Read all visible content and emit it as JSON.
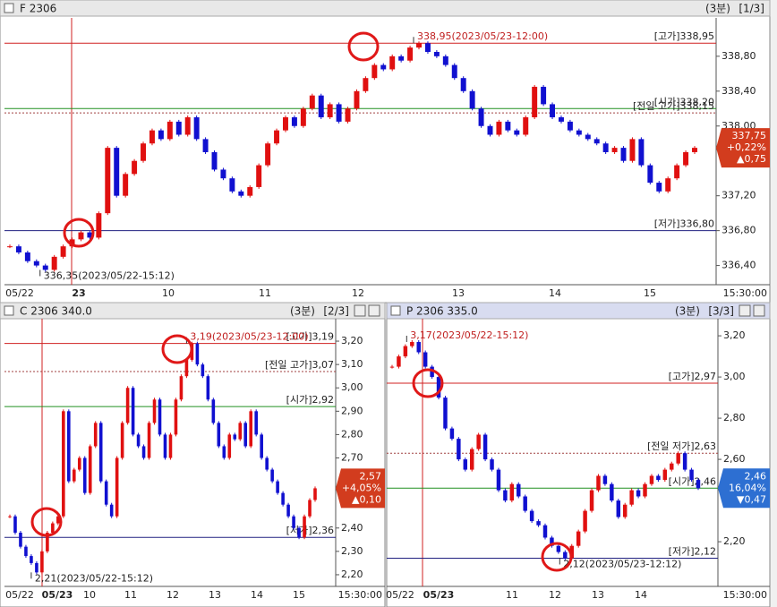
{
  "chart_data": [
    {
      "type": "candlestick",
      "title": "F 2306",
      "period": "(3분)",
      "page": "[1/3]",
      "x_labels": [
        "05/22",
        "23",
        "10",
        "11",
        "12",
        "13",
        "14",
        "15"
      ],
      "time_label": "15:30:00",
      "ylim": [
        336.18,
        339.24
      ],
      "yticks": [
        {
          "value": 338.8,
          "label": "338,80"
        },
        {
          "value": 338.4,
          "label": "338,40"
        },
        {
          "value": 338.0,
          "label": "338,00"
        },
        {
          "value": 337.2,
          "label": "337,20"
        },
        {
          "value": 336.8,
          "label": "336,80"
        },
        {
          "value": 336.4,
          "label": "336,40"
        }
      ],
      "up_color": "#e01010",
      "down_color": "#1010d0",
      "values": [
        336.62,
        336.55,
        336.45,
        336.4,
        336.35,
        336.5,
        336.62,
        336.7,
        336.78,
        336.72,
        337.0,
        337.75,
        337.2,
        337.45,
        337.6,
        337.8,
        337.95,
        337.85,
        338.05,
        337.9,
        338.1,
        337.85,
        337.7,
        337.5,
        337.4,
        337.25,
        337.2,
        337.3,
        337.55,
        337.8,
        337.95,
        338.1,
        338.0,
        338.2,
        338.35,
        338.1,
        338.25,
        338.05,
        338.2,
        338.4,
        338.55,
        338.7,
        338.65,
        338.8,
        338.75,
        338.9,
        338.95,
        338.85,
        338.8,
        338.7,
        338.55,
        338.4,
        338.2,
        338.0,
        337.9,
        338.05,
        337.95,
        337.9,
        338.1,
        338.45,
        338.25,
        338.1,
        338.05,
        337.95,
        337.9,
        337.85,
        337.8,
        337.7,
        337.75,
        337.6,
        337.85,
        337.55,
        337.35,
        337.25,
        337.4,
        337.55,
        337.7,
        337.75
      ],
      "ref_lines": [
        {
          "label": "[고가]338,95",
          "value": 338.95,
          "color": "#d02020",
          "dashed": false
        },
        {
          "label": "[시가]338,20",
          "value": 338.2,
          "color": "#209020",
          "dashed": false
        },
        {
          "label": "[전일 고가]338,15",
          "value": 338.15,
          "color": "#a04040",
          "dashed": true
        },
        {
          "label": "[저가]336,80",
          "value": 336.8,
          "color": "#202080",
          "dashed": false
        }
      ],
      "annotations": [
        {
          "value": 338.95,
          "label": "338,95(2023/05/23-12:00)"
        },
        {
          "value": 336.35,
          "label": "336,35(2023/05/22-15:12)"
        }
      ],
      "price_box": {
        "price": {
          "value": 337.75,
          "label": "337,75"
        },
        "change_pct": {
          "value": 0.22,
          "label": "+0,22%"
        },
        "change": {
          "value": 0.75,
          "label": "▲0,75"
        },
        "color": "#d23c1e"
      }
    },
    {
      "type": "candlestick",
      "title": "C 2306 340.0",
      "period": "(3분)",
      "page": "[2/3]",
      "x_labels": [
        "05/22",
        "05/23",
        "10",
        "11",
        "12",
        "13",
        "14",
        "15"
      ],
      "time_label": "15:30:00",
      "ylim": [
        2.15,
        3.296
      ],
      "yticks": [
        {
          "value": 3.2,
          "label": "3,20"
        },
        {
          "value": 3.1,
          "label": "3,10"
        },
        {
          "value": 3.0,
          "label": "3,00"
        },
        {
          "value": 2.9,
          "label": "2,90"
        },
        {
          "value": 2.8,
          "label": "2,80"
        },
        {
          "value": 2.7,
          "label": "2,70"
        },
        {
          "value": 2.4,
          "label": "2,40"
        },
        {
          "value": 2.3,
          "label": "2,30"
        },
        {
          "value": 2.2,
          "label": "2,20"
        }
      ],
      "up_color": "#e01010",
      "down_color": "#1010d0",
      "values": [
        2.45,
        2.38,
        2.32,
        2.28,
        2.25,
        2.21,
        2.3,
        2.38,
        2.42,
        2.45,
        2.9,
        2.6,
        2.65,
        2.7,
        2.55,
        2.75,
        2.85,
        2.6,
        2.5,
        2.45,
        2.7,
        2.85,
        3.0,
        2.8,
        2.75,
        2.7,
        2.85,
        2.95,
        2.8,
        2.7,
        2.8,
        2.95,
        3.05,
        3.12,
        3.19,
        3.1,
        3.05,
        2.95,
        2.85,
        2.75,
        2.7,
        2.8,
        2.78,
        2.85,
        2.75,
        2.9,
        2.8,
        2.7,
        2.65,
        2.6,
        2.55,
        2.5,
        2.45,
        2.4,
        2.36,
        2.45,
        2.52,
        2.57
      ],
      "ref_lines": [
        {
          "label": "[고가]3,19",
          "value": 3.19,
          "color": "#d02020",
          "dashed": false
        },
        {
          "label": "[전일 고가]3,07",
          "value": 3.07,
          "color": "#a04040",
          "dashed": true
        },
        {
          "label": "[시가]2,92",
          "value": 2.92,
          "color": "#209020",
          "dashed": false
        },
        {
          "label": "[저가]2,36",
          "value": 2.36,
          "color": "#202080",
          "dashed": false
        }
      ],
      "annotations": [
        {
          "value": 3.19,
          "label": "3,19(2023/05/23-12:00)"
        },
        {
          "value": 2.21,
          "label": "2,21(2023/05/22-15:12)"
        }
      ],
      "price_box": {
        "price": {
          "value": 2.57,
          "label": "2,57"
        },
        "change_pct": {
          "value": 4.05,
          "label": "+4,05%"
        },
        "change": {
          "value": 0.1,
          "label": "▲0,10"
        },
        "color": "#d23c1e"
      }
    },
    {
      "type": "candlestick",
      "title": "P 2306 335.0",
      "period": "(3분)",
      "page": "[3/3]",
      "x_labels": [
        "05/22",
        "05/23",
        "11",
        "12",
        "13",
        "14"
      ],
      "time_label": "15:30:00",
      "ylim": [
        1.983,
        3.283
      ],
      "yticks": [
        {
          "value": 3.2,
          "label": "3,20"
        },
        {
          "value": 3.0,
          "label": "3,00"
        },
        {
          "value": 2.8,
          "label": "2,80"
        },
        {
          "value": 2.6,
          "label": "2,60"
        },
        {
          "value": 2.2,
          "label": "2,20"
        }
      ],
      "up_color": "#e01010",
      "down_color": "#1010d0",
      "values": [
        3.05,
        3.1,
        3.15,
        3.17,
        3.12,
        3.05,
        3.0,
        2.9,
        2.75,
        2.7,
        2.6,
        2.55,
        2.65,
        2.72,
        2.6,
        2.55,
        2.45,
        2.4,
        2.48,
        2.42,
        2.35,
        2.3,
        2.28,
        2.22,
        2.18,
        2.15,
        2.12,
        2.18,
        2.25,
        2.35,
        2.45,
        2.52,
        2.48,
        2.4,
        2.32,
        2.38,
        2.45,
        2.42,
        2.48,
        2.52,
        2.5,
        2.55,
        2.58,
        2.63,
        2.55,
        2.5,
        2.46
      ],
      "ref_lines": [
        {
          "label": "[고가]2,97",
          "value": 2.97,
          "color": "#d02020",
          "dashed": false
        },
        {
          "label": "[전일 저가]2,63",
          "value": 2.63,
          "color": "#a04040",
          "dashed": true
        },
        {
          "label": "[시가]2,46",
          "value": 2.46,
          "color": "#209020",
          "dashed": false
        },
        {
          "label": "[저가]2,12",
          "value": 2.12,
          "color": "#202080",
          "dashed": false
        }
      ],
      "annotations": [
        {
          "value": 3.17,
          "label": "3,17(2023/05/22-15:12)"
        },
        {
          "value": 2.12,
          "label": "2,12(2023/05/23-12:12)"
        }
      ],
      "price_box": {
        "price": {
          "value": 2.46,
          "label": "2,46"
        },
        "change_pct": {
          "value": 16.04,
          "label": "16,04%"
        },
        "change": {
          "value": 0.47,
          "label": "▼0,47"
        },
        "color": "#2d6fd2"
      }
    }
  ]
}
